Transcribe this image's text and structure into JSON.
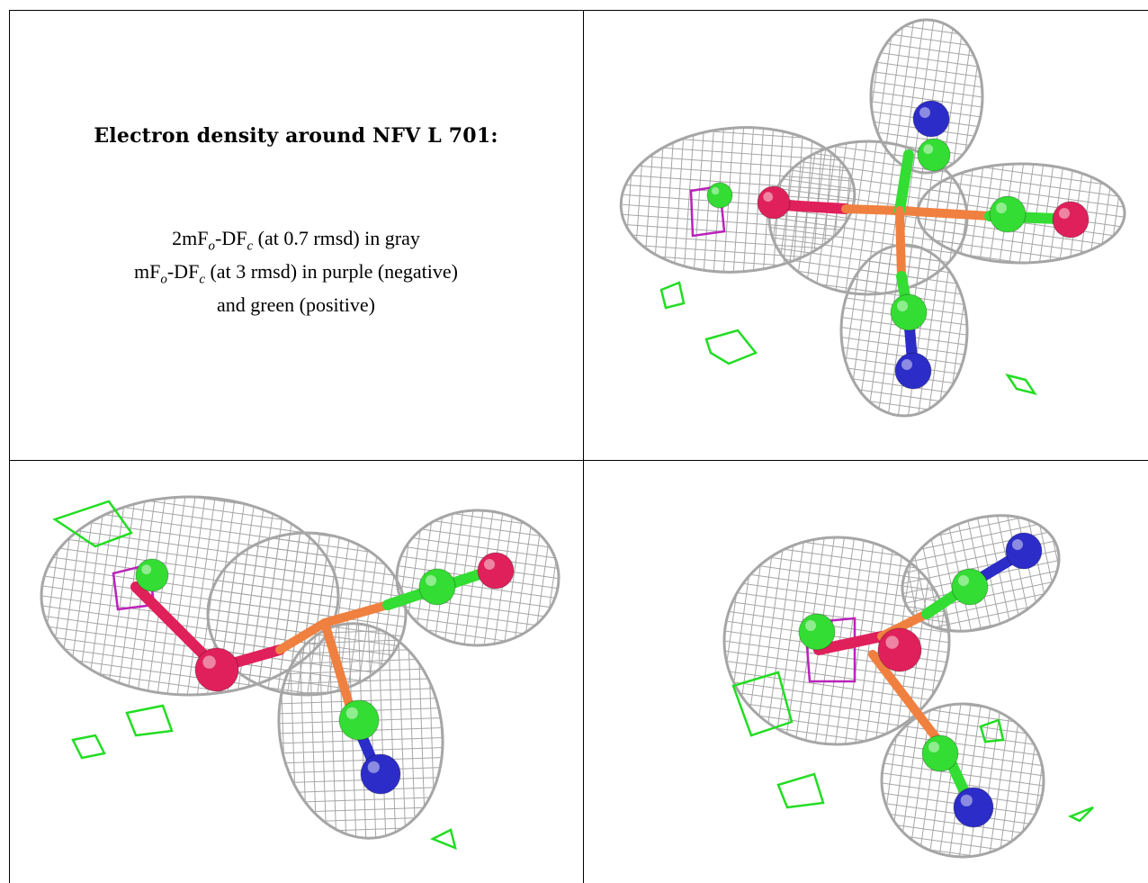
{
  "caption": {
    "title": "Electron density around NFV L 701:",
    "line1": {
      "pre": "2mF",
      "sub1": "o",
      "mid": "-DF",
      "sub2": "c",
      "post": " (at 0.7 rmsd) in gray"
    },
    "line2": {
      "pre": "mF",
      "sub1": "o",
      "mid": "-DF",
      "sub2": "c",
      "post": " (at 3 rmsd) in purple (negative)"
    },
    "line3": "and green (positive)"
  },
  "colors": {
    "mesh_gray": "#a6a6a6",
    "diff_positive": "#22dd22",
    "diff_negative": "#bb22bb",
    "atom_nitrogen": "#2c2cc8",
    "atom_oxygen": "#e0205a",
    "atom_carbon": "#33dd33",
    "atom_metal": "#f08040"
  },
  "panels": [
    {
      "view": "top-right"
    },
    {
      "view": "bottom-left"
    },
    {
      "view": "bottom-right"
    }
  ]
}
